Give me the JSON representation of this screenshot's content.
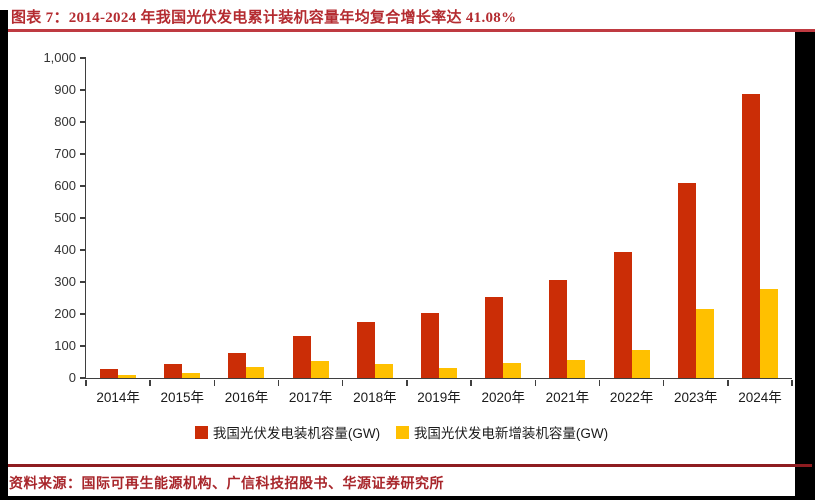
{
  "page": {
    "title": "图表 7：2014-2024 年我国光伏发电累计装机容量年均复合增长率达 41.08%",
    "source": "资料来源：国际可再生能源机构、广信科技招股书、华源证券研究所"
  },
  "colors": {
    "title_red": "#b42b30",
    "top_rule": "#bf3a41",
    "bottom_rule": "#8e1c20",
    "bar_red": "#cb2d06",
    "bar_yellow": "#ffc000",
    "axis": "#3f3f3f"
  },
  "chart_data": {
    "type": "bar",
    "title": "2014-2024 年我国光伏发电累计装机容量",
    "categories": [
      "2014年",
      "2015年",
      "2016年",
      "2017年",
      "2018年",
      "2019年",
      "2020年",
      "2021年",
      "2022年",
      "2023年",
      "2024年"
    ],
    "series": [
      {
        "name": "我国光伏发电装机容量(GW)",
        "color": "#cb2d06",
        "values": [
          28.4,
          43.5,
          77.8,
          130.8,
          174.5,
          204.7,
          253.4,
          306.6,
          392.6,
          609.5,
          886.7
        ]
      },
      {
        "name": "我国光伏发电新增装机容量(GW)",
        "color": "#ffc000",
        "values": [
          10.6,
          15.1,
          34.5,
          53.1,
          44.3,
          30.1,
          48.2,
          54.9,
          87.4,
          216.9,
          277.6
        ]
      }
    ],
    "xlabel": "",
    "ylabel": "",
    "ylim": [
      0,
      1000
    ],
    "ytick_step": 100,
    "ytick_labels": [
      "0",
      "100",
      "200",
      "300",
      "400",
      "500",
      "600",
      "700",
      "800",
      "900",
      "1,000"
    ],
    "grid": false,
    "legend_position": "bottom"
  }
}
